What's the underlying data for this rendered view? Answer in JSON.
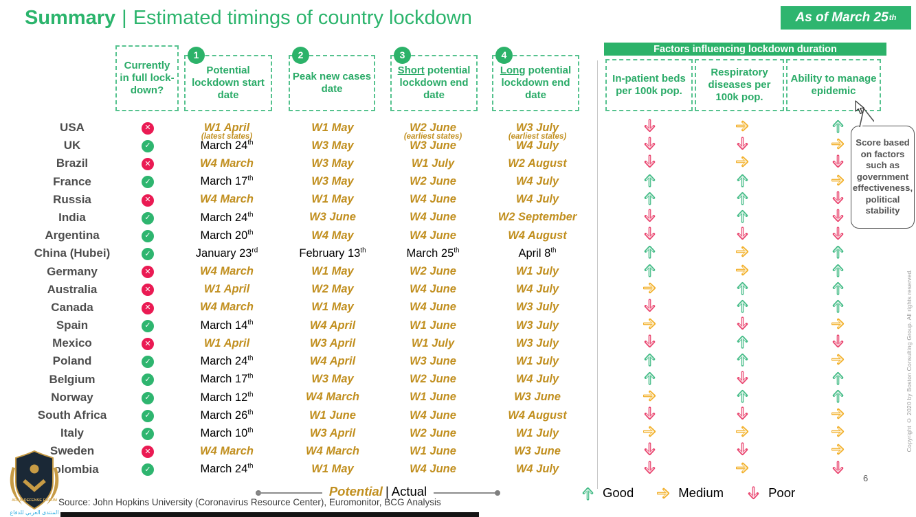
{
  "title": {
    "left": "Summary",
    "sep": "|",
    "right": "Estimated timings of country lockdown"
  },
  "badge": {
    "text": "As of March 25",
    "sup": "th"
  },
  "columns": [
    {
      "number": "",
      "label": "Currently in full lock-down?"
    },
    {
      "number": "1",
      "label": "Potential lockdown start date"
    },
    {
      "number": "2",
      "label": "Peak new cases date"
    },
    {
      "number": "3",
      "word": "Short",
      "rest": " potential lockdown end date"
    },
    {
      "number": "4",
      "word": "Long",
      "rest": " potential lockdown end date"
    }
  ],
  "factors": {
    "header": "Factors influencing lockdown duration",
    "columns": [
      "In-patient beds per 100k pop.",
      "Respiratory diseases per 100k pop.",
      "Ability to manage epidemic"
    ]
  },
  "callout": "Score based on factors such as government effectiveness, political stability",
  "rows": [
    {
      "country": "USA",
      "lockdown": "no",
      "start": {
        "text": "W1 April",
        "sup": "",
        "type": "potential",
        "note": "(latest states)"
      },
      "peak": {
        "text": "W1 May",
        "sup": "",
        "type": "potential",
        "note": ""
      },
      "short_end": {
        "text": "W2 June",
        "sup": "",
        "type": "potential",
        "note": "(earliest states)"
      },
      "long_end": {
        "text": "W3 July",
        "sup": "",
        "type": "potential",
        "note": "(earliest states)"
      },
      "factors": [
        "poor",
        "medium",
        "good"
      ]
    },
    {
      "country": "UK",
      "lockdown": "yes",
      "start": {
        "text": "March 24",
        "sup": "th",
        "type": "actual",
        "note": ""
      },
      "peak": {
        "text": "W3 May",
        "sup": "",
        "type": "potential",
        "note": ""
      },
      "short_end": {
        "text": "W3 June",
        "sup": "",
        "type": "potential",
        "note": ""
      },
      "long_end": {
        "text": "W4 July",
        "sup": "",
        "type": "potential",
        "note": ""
      },
      "factors": [
        "poor",
        "poor",
        "medium"
      ]
    },
    {
      "country": "Brazil",
      "lockdown": "no",
      "start": {
        "text": "W4 March",
        "sup": "",
        "type": "potential",
        "note": ""
      },
      "peak": {
        "text": "W3 May",
        "sup": "",
        "type": "potential",
        "note": ""
      },
      "short_end": {
        "text": "W1 July",
        "sup": "",
        "type": "potential",
        "note": ""
      },
      "long_end": {
        "text": "W2 August",
        "sup": "",
        "type": "potential",
        "note": ""
      },
      "factors": [
        "poor",
        "medium",
        "poor"
      ]
    },
    {
      "country": "France",
      "lockdown": "yes",
      "start": {
        "text": "March 17",
        "sup": "th",
        "type": "actual",
        "note": ""
      },
      "peak": {
        "text": "W3 May",
        "sup": "",
        "type": "potential",
        "note": ""
      },
      "short_end": {
        "text": "W2 June",
        "sup": "",
        "type": "potential",
        "note": ""
      },
      "long_end": {
        "text": "W4 July",
        "sup": "",
        "type": "potential",
        "note": ""
      },
      "factors": [
        "good",
        "good",
        "medium"
      ]
    },
    {
      "country": "Russia",
      "lockdown": "no",
      "start": {
        "text": "W4 March",
        "sup": "",
        "type": "potential",
        "note": ""
      },
      "peak": {
        "text": "W1 May",
        "sup": "",
        "type": "potential",
        "note": ""
      },
      "short_end": {
        "text": "W4 June",
        "sup": "",
        "type": "potential",
        "note": ""
      },
      "long_end": {
        "text": "W4 July",
        "sup": "",
        "type": "potential",
        "note": ""
      },
      "factors": [
        "good",
        "good",
        "poor"
      ]
    },
    {
      "country": "India",
      "lockdown": "yes",
      "start": {
        "text": "March 24",
        "sup": "th",
        "type": "actual",
        "note": ""
      },
      "peak": {
        "text": "W3 June",
        "sup": "",
        "type": "potential",
        "note": ""
      },
      "short_end": {
        "text": "W4 June",
        "sup": "",
        "type": "potential",
        "note": ""
      },
      "long_end": {
        "text": "W2 September",
        "sup": "",
        "type": "potential",
        "note": ""
      },
      "factors": [
        "poor",
        "good",
        "poor"
      ]
    },
    {
      "country": "Argentina",
      "lockdown": "yes",
      "start": {
        "text": "March 20",
        "sup": "th",
        "type": "actual",
        "note": ""
      },
      "peak": {
        "text": "W4 May",
        "sup": "",
        "type": "potential",
        "note": ""
      },
      "short_end": {
        "text": "W4 June",
        "sup": "",
        "type": "potential",
        "note": ""
      },
      "long_end": {
        "text": "W4 August",
        "sup": "",
        "type": "potential",
        "note": ""
      },
      "factors": [
        "poor",
        "poor",
        "poor"
      ]
    },
    {
      "country": "China (Hubei)",
      "lockdown": "yes",
      "start": {
        "text": "January 23",
        "sup": "rd",
        "type": "actual",
        "note": ""
      },
      "peak": {
        "text": "February 13",
        "sup": "th",
        "type": "actual",
        "note": ""
      },
      "short_end": {
        "text": "March 25",
        "sup": "th",
        "type": "actual",
        "note": ""
      },
      "long_end": {
        "text": "April 8",
        "sup": "th",
        "type": "actual",
        "note": ""
      },
      "factors": [
        "good",
        "medium",
        "good"
      ]
    },
    {
      "country": "Germany",
      "lockdown": "no",
      "start": {
        "text": "W4 March",
        "sup": "",
        "type": "potential",
        "note": ""
      },
      "peak": {
        "text": "W1 May",
        "sup": "",
        "type": "potential",
        "note": ""
      },
      "short_end": {
        "text": "W2 June",
        "sup": "",
        "type": "potential",
        "note": ""
      },
      "long_end": {
        "text": "W1 July",
        "sup": "",
        "type": "potential",
        "note": ""
      },
      "factors": [
        "good",
        "medium",
        "good"
      ]
    },
    {
      "country": "Australia",
      "lockdown": "no",
      "start": {
        "text": "W1 April",
        "sup": "",
        "type": "potential",
        "note": ""
      },
      "peak": {
        "text": "W2 May",
        "sup": "",
        "type": "potential",
        "note": ""
      },
      "short_end": {
        "text": "W4 June",
        "sup": "",
        "type": "potential",
        "note": ""
      },
      "long_end": {
        "text": "W4 July",
        "sup": "",
        "type": "potential",
        "note": ""
      },
      "factors": [
        "medium",
        "good",
        "good"
      ]
    },
    {
      "country": "Canada",
      "lockdown": "no",
      "start": {
        "text": "W4 March",
        "sup": "",
        "type": "potential",
        "note": ""
      },
      "peak": {
        "text": "W1 May",
        "sup": "",
        "type": "potential",
        "note": ""
      },
      "short_end": {
        "text": "W4 June",
        "sup": "",
        "type": "potential",
        "note": ""
      },
      "long_end": {
        "text": "W3 July",
        "sup": "",
        "type": "potential",
        "note": ""
      },
      "factors": [
        "poor",
        "good",
        "good"
      ]
    },
    {
      "country": "Spain",
      "lockdown": "yes",
      "start": {
        "text": "March 14",
        "sup": "th",
        "type": "actual",
        "note": ""
      },
      "peak": {
        "text": "W4 April",
        "sup": "",
        "type": "potential",
        "note": ""
      },
      "short_end": {
        "text": "W1 June",
        "sup": "",
        "type": "potential",
        "note": ""
      },
      "long_end": {
        "text": "W3 July",
        "sup": "",
        "type": "potential",
        "note": ""
      },
      "factors": [
        "medium",
        "poor",
        "medium"
      ]
    },
    {
      "country": "Mexico",
      "lockdown": "no",
      "start": {
        "text": "W1 April",
        "sup": "",
        "type": "potential",
        "note": ""
      },
      "peak": {
        "text": "W3 April",
        "sup": "",
        "type": "potential",
        "note": ""
      },
      "short_end": {
        "text": "W1 July",
        "sup": "",
        "type": "potential",
        "note": ""
      },
      "long_end": {
        "text": "W3 July",
        "sup": "",
        "type": "potential",
        "note": ""
      },
      "factors": [
        "poor",
        "good",
        "poor"
      ]
    },
    {
      "country": "Poland",
      "lockdown": "yes",
      "start": {
        "text": "March 24",
        "sup": "th",
        "type": "actual",
        "note": ""
      },
      "peak": {
        "text": "W4 April",
        "sup": "",
        "type": "potential",
        "note": ""
      },
      "short_end": {
        "text": "W3 June",
        "sup": "",
        "type": "potential",
        "note": ""
      },
      "long_end": {
        "text": "W1 July",
        "sup": "",
        "type": "potential",
        "note": ""
      },
      "factors": [
        "good",
        "good",
        "medium"
      ]
    },
    {
      "country": "Belgium",
      "lockdown": "yes",
      "start": {
        "text": "March 17",
        "sup": "th",
        "type": "actual",
        "note": ""
      },
      "peak": {
        "text": "W3 May",
        "sup": "",
        "type": "potential",
        "note": ""
      },
      "short_end": {
        "text": "W2 June",
        "sup": "",
        "type": "potential",
        "note": ""
      },
      "long_end": {
        "text": "W4 July",
        "sup": "",
        "type": "potential",
        "note": ""
      },
      "factors": [
        "good",
        "poor",
        "good"
      ]
    },
    {
      "country": "Norway",
      "lockdown": "yes",
      "start": {
        "text": "March 12",
        "sup": "th",
        "type": "actual",
        "note": ""
      },
      "peak": {
        "text": "W4 March",
        "sup": "",
        "type": "potential",
        "note": ""
      },
      "short_end": {
        "text": "W1 June",
        "sup": "",
        "type": "potential",
        "note": ""
      },
      "long_end": {
        "text": "W3 June",
        "sup": "",
        "type": "potential",
        "note": ""
      },
      "factors": [
        "medium",
        "good",
        "good"
      ]
    },
    {
      "country": "South Africa",
      "lockdown": "yes",
      "start": {
        "text": "March 26",
        "sup": "th",
        "type": "actual",
        "note": ""
      },
      "peak": {
        "text": "W1 June",
        "sup": "",
        "type": "potential",
        "note": ""
      },
      "short_end": {
        "text": "W4 June",
        "sup": "",
        "type": "potential",
        "note": ""
      },
      "long_end": {
        "text": "W4 August",
        "sup": "",
        "type": "potential",
        "note": ""
      },
      "factors": [
        "poor",
        "poor",
        "medium"
      ]
    },
    {
      "country": "Italy",
      "lockdown": "yes",
      "start": {
        "text": "March 10",
        "sup": "th",
        "type": "actual",
        "note": ""
      },
      "peak": {
        "text": "W3 April",
        "sup": "",
        "type": "potential",
        "note": ""
      },
      "short_end": {
        "text": "W2 June",
        "sup": "",
        "type": "potential",
        "note": ""
      },
      "long_end": {
        "text": "W1 July",
        "sup": "",
        "type": "potential",
        "note": ""
      },
      "factors": [
        "medium",
        "medium",
        "medium"
      ]
    },
    {
      "country": "Sweden",
      "lockdown": "no",
      "start": {
        "text": "W4 March",
        "sup": "",
        "type": "potential",
        "note": ""
      },
      "peak": {
        "text": "W4 March",
        "sup": "",
        "type": "potential",
        "note": ""
      },
      "short_end": {
        "text": "W1 June",
        "sup": "",
        "type": "potential",
        "note": ""
      },
      "long_end": {
        "text": "W3 June",
        "sup": "",
        "type": "potential",
        "note": ""
      },
      "factors": [
        "poor",
        "poor",
        "medium"
      ]
    },
    {
      "country": "Colombia",
      "lockdown": "yes",
      "start": {
        "text": "March 24",
        "sup": "th",
        "type": "actual",
        "note": ""
      },
      "peak": {
        "text": "W1 May",
        "sup": "",
        "type": "potential",
        "note": ""
      },
      "short_end": {
        "text": "W4 June",
        "sup": "",
        "type": "potential",
        "note": ""
      },
      "long_end": {
        "text": "W4 July",
        "sup": "",
        "type": "potential",
        "note": ""
      },
      "factors": [
        "poor",
        "medium",
        "poor"
      ]
    }
  ],
  "timeline_legend": {
    "potential": "Potential",
    "sep": "|",
    "actual": "Actual"
  },
  "factor_legend": {
    "good": "Good",
    "medium": "Medium",
    "poor": "Poor"
  },
  "source": "Source: John Hopkins University (Coronavirus Resource Center), Euromonitor, BCG Analysis",
  "page_number": "6",
  "copyright": "Copyright © 2020 by Boston Consulting Group. All rights reserved.",
  "watermark": {
    "en": "ARAB DEFENSE FORUM",
    "ar": "المنتدى العربي للدفاع"
  },
  "colors": {
    "accent_green": "#2cb269",
    "potential_gold": "#c18f1f",
    "actual_black": "#000000",
    "check_green": "#2eb56f",
    "cross_red": "#ea1a53",
    "arrow_good": "#43bb86",
    "arrow_medium": "#f2b02c",
    "arrow_poor": "#e9446e"
  }
}
